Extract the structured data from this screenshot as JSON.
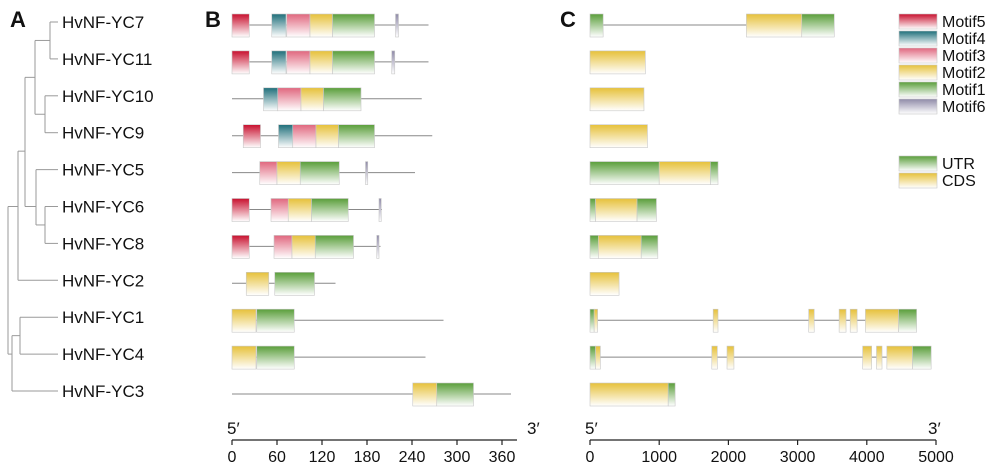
{
  "panels": {
    "a": "A",
    "b": "B",
    "c": "C"
  },
  "genes": [
    "HvNF-YC7",
    "HvNF-YC11",
    "HvNF-YC10",
    "HvNF-YC9",
    "HvNF-YC5",
    "HvNF-YC6",
    "HvNF-YC8",
    "HvNF-YC2",
    "HvNF-YC1",
    "HvNF-YC4",
    "HvNF-YC3"
  ],
  "motif_legend": [
    {
      "name": "Motif5",
      "color": "#c8102e"
    },
    {
      "name": "Motif4",
      "color": "#1f6f7a"
    },
    {
      "name": "Motif3",
      "color": "#e0677e"
    },
    {
      "name": "Motif2",
      "color": "#e6c13a"
    },
    {
      "name": "Motif1",
      "color": "#5a9e3a"
    },
    {
      "name": "Motif6",
      "color": "#8f8aa8"
    }
  ],
  "structure_legend": [
    {
      "name": "UTR",
      "color": "#5a9e3a"
    },
    {
      "name": "CDS",
      "color": "#e6c13a"
    }
  ],
  "axis_b": {
    "start_label": "5′",
    "end_label": "3′",
    "ticks": [
      0,
      60,
      120,
      180,
      240,
      300,
      360
    ],
    "max": 380
  },
  "axis_c": {
    "start_label": "5′",
    "end_label": "3′",
    "ticks": [
      0,
      1000,
      2000,
      3000,
      4000,
      5000
    ],
    "max": 5000
  },
  "motifs": [
    {
      "len": 262,
      "boxes": [
        [
          0,
          23,
          "Motif5"
        ],
        [
          53,
          72,
          "Motif4"
        ],
        [
          73,
          104,
          "Motif3"
        ],
        [
          104,
          134,
          "Motif2"
        ],
        [
          134,
          190,
          "Motif1"
        ],
        [
          218,
          222,
          "Motif6"
        ]
      ]
    },
    {
      "len": 262,
      "boxes": [
        [
          0,
          23,
          "Motif5"
        ],
        [
          53,
          72,
          "Motif4"
        ],
        [
          73,
          104,
          "Motif3"
        ],
        [
          104,
          134,
          "Motif2"
        ],
        [
          134,
          190,
          "Motif1"
        ],
        [
          213,
          217,
          "Motif6"
        ]
      ]
    },
    {
      "len": 253,
      "boxes": [
        [
          42,
          61,
          "Motif4"
        ],
        [
          61,
          92,
          "Motif3"
        ],
        [
          92,
          122,
          "Motif2"
        ],
        [
          122,
          172,
          "Motif1"
        ]
      ]
    },
    {
      "len": 267,
      "boxes": [
        [
          15,
          38,
          "Motif5"
        ],
        [
          62,
          81,
          "Motif4"
        ],
        [
          81,
          112,
          "Motif3"
        ],
        [
          112,
          142,
          "Motif2"
        ],
        [
          142,
          190,
          "Motif1"
        ]
      ]
    },
    {
      "len": 244,
      "boxes": [
        [
          37,
          60,
          "Motif3"
        ],
        [
          60,
          91,
          "Motif2"
        ],
        [
          91,
          143,
          "Motif1"
        ],
        [
          178,
          181,
          "Motif6"
        ]
      ]
    },
    {
      "len": 200,
      "boxes": [
        [
          0,
          23,
          "Motif5"
        ],
        [
          52,
          75,
          "Motif3"
        ],
        [
          75,
          106,
          "Motif2"
        ],
        [
          106,
          155,
          "Motif1"
        ],
        [
          196,
          199,
          "Motif6"
        ]
      ]
    },
    {
      "len": 198,
      "boxes": [
        [
          0,
          23,
          "Motif5"
        ],
        [
          56,
          80,
          "Motif3"
        ],
        [
          80,
          111,
          "Motif2"
        ],
        [
          111,
          162,
          "Motif1"
        ],
        [
          193,
          196,
          "Motif6"
        ]
      ]
    },
    {
      "len": 138,
      "boxes": [
        [
          19,
          49,
          "Motif2"
        ],
        [
          57,
          110,
          "Motif1"
        ]
      ]
    },
    {
      "len": 282,
      "boxes": [
        [
          0,
          32,
          "Motif2"
        ],
        [
          33,
          83,
          "Motif1"
        ]
      ]
    },
    {
      "len": 258,
      "boxes": [
        [
          0,
          32,
          "Motif2"
        ],
        [
          33,
          83,
          "Motif1"
        ]
      ]
    },
    {
      "len": 372,
      "boxes": [
        [
          241,
          273,
          "Motif2"
        ],
        [
          273,
          322,
          "Motif1"
        ]
      ]
    }
  ],
  "structures": [
    {
      "len": 3530,
      "boxes": [
        [
          0,
          190,
          "UTR"
        ],
        [
          2260,
          3060,
          "CDS"
        ],
        [
          3060,
          3530,
          "UTR"
        ]
      ]
    },
    {
      "len": 800,
      "boxes": [
        [
          0,
          800,
          "CDS"
        ]
      ]
    },
    {
      "len": 780,
      "boxes": [
        [
          0,
          780,
          "CDS"
        ]
      ]
    },
    {
      "len": 830,
      "boxes": [
        [
          0,
          830,
          "CDS"
        ]
      ]
    },
    {
      "len": 1850,
      "boxes": [
        [
          0,
          1000,
          "UTR"
        ],
        [
          1000,
          1740,
          "CDS"
        ],
        [
          1740,
          1850,
          "UTR"
        ]
      ]
    },
    {
      "len": 960,
      "boxes": [
        [
          0,
          80,
          "UTR"
        ],
        [
          80,
          680,
          "CDS"
        ],
        [
          680,
          960,
          "UTR"
        ]
      ]
    },
    {
      "len": 980,
      "boxes": [
        [
          0,
          120,
          "UTR"
        ],
        [
          120,
          740,
          "CDS"
        ],
        [
          740,
          980,
          "UTR"
        ]
      ]
    },
    {
      "len": 420,
      "boxes": [
        [
          0,
          420,
          "CDS"
        ]
      ]
    },
    {
      "len": 4720,
      "boxes": [
        [
          0,
          60,
          "UTR"
        ],
        [
          60,
          110,
          "CDS"
        ],
        [
          1780,
          1850,
          "CDS"
        ],
        [
          3160,
          3240,
          "CDS"
        ],
        [
          3600,
          3700,
          "CDS"
        ],
        [
          3760,
          3860,
          "CDS"
        ],
        [
          3980,
          4460,
          "CDS"
        ],
        [
          4460,
          4720,
          "UTR"
        ]
      ]
    },
    {
      "len": 4930,
      "boxes": [
        [
          0,
          80,
          "UTR"
        ],
        [
          80,
          150,
          "CDS"
        ],
        [
          1760,
          1840,
          "CDS"
        ],
        [
          1980,
          2080,
          "CDS"
        ],
        [
          3940,
          4070,
          "CDS"
        ],
        [
          4140,
          4220,
          "CDS"
        ],
        [
          4290,
          4660,
          "CDS"
        ],
        [
          4660,
          4930,
          "UTR"
        ]
      ]
    },
    {
      "len": 1230,
      "boxes": [
        [
          0,
          1130,
          "CDS"
        ],
        [
          1130,
          1230,
          "UTR"
        ]
      ]
    }
  ]
}
